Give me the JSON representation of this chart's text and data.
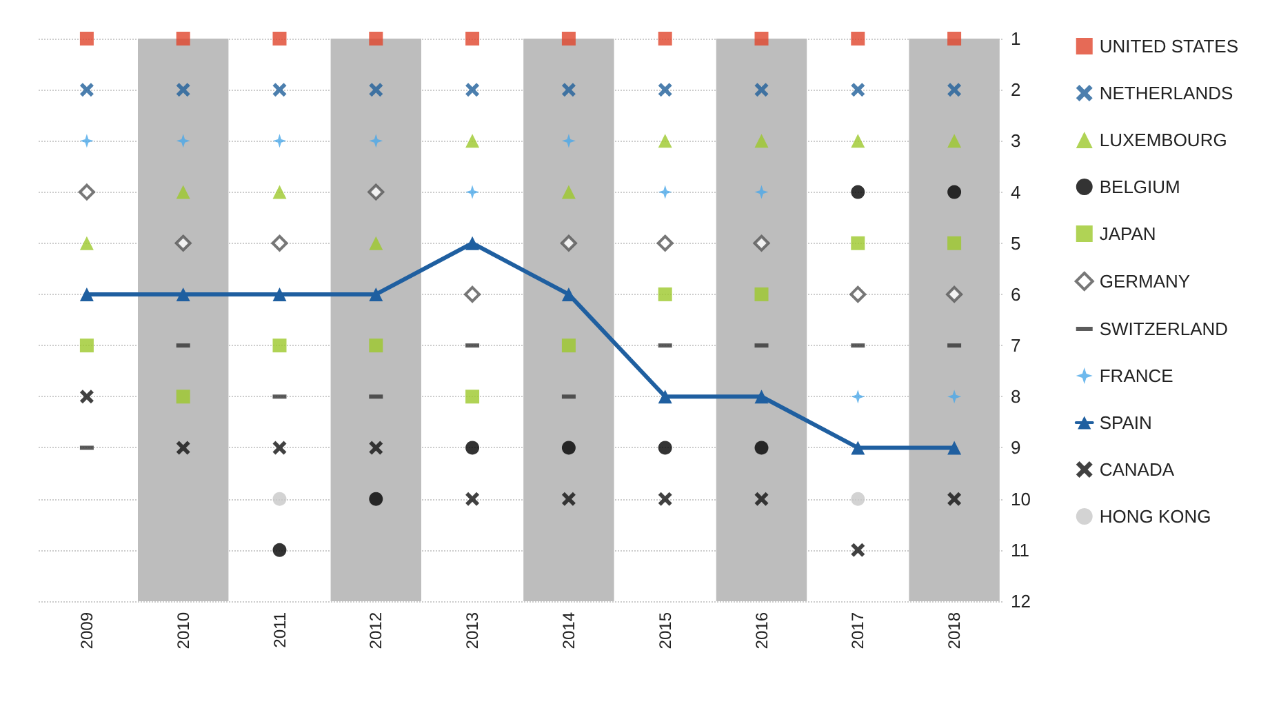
{
  "chart_data": {
    "type": "scatter",
    "categories": [
      "2009",
      "2010",
      "2011",
      "2012",
      "2013",
      "2014",
      "2015",
      "2016",
      "2017",
      "2018"
    ],
    "series": [
      {
        "name": "UNITED STATES",
        "color": "#e0452c",
        "marker": "square",
        "values": [
          1,
          1,
          1,
          1,
          1,
          1,
          1,
          1,
          1,
          1
        ]
      },
      {
        "name": "NETHERLANDS",
        "color": "#1f5f9a",
        "marker": "cross",
        "values": [
          2,
          2,
          2,
          2,
          2,
          2,
          2,
          2,
          2,
          2
        ]
      },
      {
        "name": "LUXEMBOURG",
        "color": "#9cc82a",
        "marker": "triangle",
        "values": [
          5,
          4,
          4,
          5,
          3,
          4,
          3,
          3,
          3,
          3
        ]
      },
      {
        "name": "BELGIUM",
        "color": "#000000",
        "marker": "circle",
        "values": [
          null,
          null,
          11,
          10,
          9,
          9,
          9,
          9,
          4,
          4
        ]
      },
      {
        "name": "JAPAN",
        "color": "#9cc82a",
        "marker": "square",
        "values": [
          7,
          8,
          7,
          7,
          8,
          7,
          6,
          6,
          5,
          5
        ]
      },
      {
        "name": "GERMANY",
        "color": "#555555",
        "marker": "diamond",
        "values": [
          4,
          5,
          5,
          4,
          6,
          5,
          5,
          5,
          6,
          6
        ]
      },
      {
        "name": "SWITZERLAND",
        "color": "#333333",
        "values": [
          9,
          7,
          8,
          8,
          7,
          8,
          7,
          7,
          7,
          7
        ]
      },
      {
        "name": "FRANCE",
        "color": "#4aa8e8",
        "marker": "star",
        "values": [
          3,
          3,
          3,
          3,
          4,
          3,
          4,
          4,
          8,
          8
        ]
      },
      {
        "name": "SPAIN",
        "type": "line",
        "color": "#1f5fa0",
        "marker": "triangle",
        "line_style": "solid",
        "values": [
          6,
          6,
          6,
          6,
          5,
          6,
          8,
          8,
          9,
          9
        ]
      },
      {
        "name": "CANADA",
        "color": "#111111",
        "marker": "cross",
        "values": [
          8,
          9,
          9,
          9,
          10,
          10,
          10,
          10,
          11,
          10
        ]
      },
      {
        "name": "HONG KONG",
        "color": "#c8c8c8",
        "marker": "circle",
        "values": [
          null,
          null,
          10,
          null,
          null,
          null,
          null,
          null,
          10,
          null
        ]
      }
    ],
    "bands": [
      {
        "axis": "x",
        "from": "2010",
        "to": "2010",
        "color": "#bdbdbd"
      },
      {
        "axis": "x",
        "from": "2012",
        "to": "2012",
        "color": "#bdbdbd"
      },
      {
        "axis": "x",
        "from": "2014",
        "to": "2014",
        "color": "#bdbdbd"
      },
      {
        "axis": "x",
        "from": "2016",
        "to": "2016",
        "color": "#bdbdbd"
      },
      {
        "axis": "x",
        "from": "2018",
        "to": "2018",
        "color": "#bdbdbd"
      }
    ],
    "ylim": [
      12,
      1
    ],
    "yticks": [
      1,
      2,
      3,
      4,
      5,
      6,
      7,
      8,
      9,
      10,
      11,
      12
    ],
    "grid": "y",
    "legend": "right"
  }
}
